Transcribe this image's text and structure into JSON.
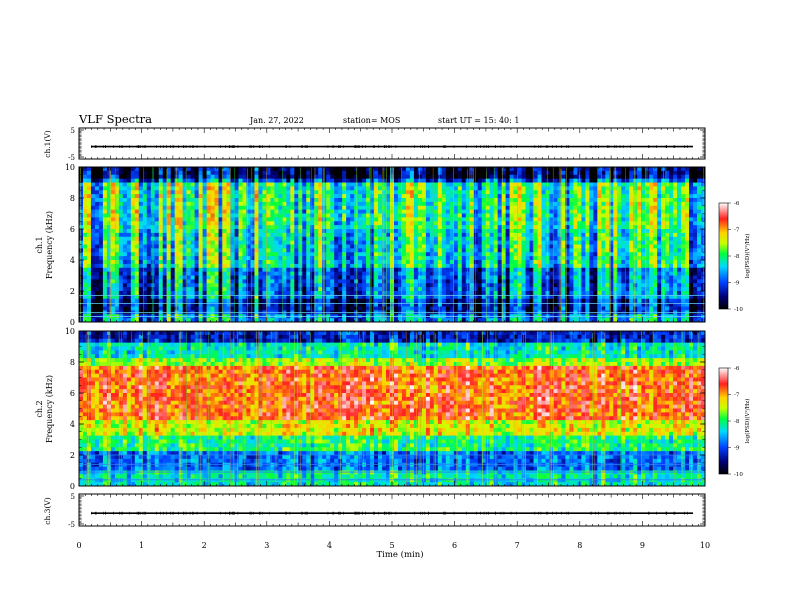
{
  "header": {
    "title": "VLF Spectra",
    "date": "Jan. 27, 2022",
    "station": "station= MOS",
    "start": "start  UT =   15: 40: 1"
  },
  "chart_data": [
    {
      "type": "line",
      "ylabel": "ch.1(V)",
      "ylim": [
        -5,
        5
      ],
      "yticks": [
        5,
        -5
      ],
      "xlim": [
        0,
        10
      ],
      "level": -1.0
    },
    {
      "type": "heatmap",
      "ylabel_top": "ch.1",
      "ylabel_bottom": "Frequency (kHz)",
      "ylim": [
        0,
        10
      ],
      "yticks": [
        0,
        2,
        4,
        6,
        8,
        10
      ],
      "xlim": [
        0,
        10
      ],
      "colorbar": {
        "label": "log(PSD)(V²/Hz)",
        "ticks": [
          "-6",
          "-7",
          "-8",
          "-9",
          "-10"
        ],
        "range": [
          -10,
          -6
        ]
      },
      "band_top_khz": 9.0,
      "intensity": "moderate"
    },
    {
      "type": "heatmap",
      "ylabel_top": "ch.2",
      "ylabel_bottom": "Frequency (kHz)",
      "ylim": [
        0,
        10
      ],
      "yticks": [
        0,
        2,
        4,
        6,
        8,
        10
      ],
      "xlim": [
        0,
        10
      ],
      "colorbar": {
        "label": "log(PSD)(V²/Hz)",
        "ticks": [
          "-6",
          "-7",
          "-8",
          "-9",
          "-10"
        ],
        "range": [
          -10,
          -6
        ]
      },
      "peak_band_khz": [
        4.5,
        7.5
      ],
      "intensity": "strong"
    },
    {
      "type": "line",
      "ylabel": "ch.3(V)",
      "ylim": [
        -5,
        5
      ],
      "yticks": [
        5,
        -5
      ],
      "xlim": [
        0,
        10
      ],
      "level": -1.0,
      "xlabel": "Time (min)",
      "xticks": [
        0,
        1,
        2,
        3,
        4,
        5,
        6,
        7,
        8,
        9,
        10
      ]
    }
  ]
}
